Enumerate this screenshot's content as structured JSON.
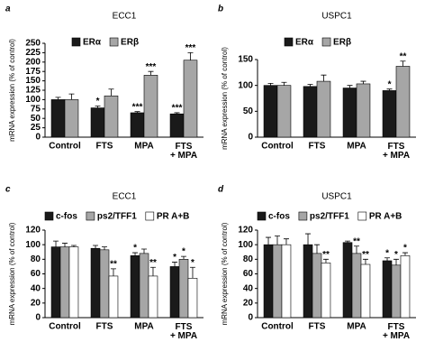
{
  "chart_data": [
    {
      "type": "bar",
      "panel": "a",
      "title": "ECC1",
      "y_label": "mRNA expression (% of control)",
      "categories": [
        "Control",
        "FTS",
        "MPA",
        "FTS + MPA"
      ],
      "series": [
        {
          "name": "ERα",
          "color": "#1a1a1a",
          "values": [
            100,
            78,
            65,
            62
          ],
          "errors": [
            6,
            5,
            3,
            3
          ],
          "significance": [
            null,
            "*",
            "***",
            "***"
          ]
        },
        {
          "name": "ERβ",
          "color": "#a6a6a6",
          "values": [
            100,
            110,
            165,
            205
          ],
          "errors": [
            15,
            18,
            10,
            20
          ],
          "significance": [
            null,
            null,
            "***",
            "***"
          ]
        }
      ],
      "ylim": [
        0,
        250
      ],
      "yticks": [
        0,
        25,
        50,
        75,
        100,
        125,
        150,
        175,
        200,
        225,
        250
      ]
    },
    {
      "type": "bar",
      "panel": "b",
      "title": "USPC1",
      "y_label": "mRNA expression (% of control)",
      "categories": [
        "Control",
        "FTS",
        "MPA",
        "FTS + MPA"
      ],
      "series": [
        {
          "name": "ERα",
          "color": "#1a1a1a",
          "values": [
            100,
            98,
            95,
            90
          ],
          "errors": [
            4,
            4,
            5,
            3
          ],
          "significance": [
            null,
            null,
            null,
            "*"
          ]
        },
        {
          "name": "ERβ",
          "color": "#a6a6a6",
          "values": [
            100,
            108,
            103,
            137
          ],
          "errors": [
            6,
            12,
            5,
            10
          ],
          "significance": [
            null,
            null,
            null,
            "**"
          ]
        }
      ],
      "ylim": [
        0,
        150
      ],
      "yticks": [
        0,
        50,
        100,
        150
      ]
    },
    {
      "type": "bar",
      "panel": "c",
      "title": "ECC1",
      "y_label": "mRNA expression (% of control)",
      "categories": [
        "Control",
        "FTS",
        "MPA",
        "FTS + MPA"
      ],
      "series": [
        {
          "name": "c-fos",
          "color": "#1a1a1a",
          "values": [
            97,
            95,
            85,
            70
          ],
          "errors": [
            8,
            4,
            4,
            6
          ],
          "significance": [
            null,
            null,
            "*",
            "*"
          ]
        },
        {
          "name": "ps2/TFF1",
          "color": "#a6a6a6",
          "values": [
            97,
            93,
            88,
            80
          ],
          "errors": [
            5,
            4,
            6,
            4
          ],
          "significance": [
            null,
            null,
            null,
            "*"
          ]
        },
        {
          "name": "PR A+B",
          "color": "#ffffff",
          "values": [
            97,
            57,
            57,
            54
          ],
          "errors": [
            2,
            10,
            12,
            15
          ],
          "significance": [
            null,
            "**",
            "**",
            "*"
          ]
        }
      ],
      "ylim": [
        0,
        120
      ],
      "yticks": [
        0,
        20,
        40,
        60,
        80,
        100,
        120
      ]
    },
    {
      "type": "bar",
      "panel": "d",
      "title": "USPC1",
      "y_label": "mRNA expression (% of control)",
      "categories": [
        "Control",
        "FTS",
        "MPA",
        "FTS + MPA"
      ],
      "series": [
        {
          "name": "c-fos",
          "color": "#1a1a1a",
          "values": [
            100,
            100,
            103,
            78
          ],
          "errors": [
            10,
            15,
            2,
            4
          ],
          "significance": [
            null,
            null,
            null,
            "*"
          ]
        },
        {
          "name": "ps2/TFF1",
          "color": "#a6a6a6",
          "values": [
            100,
            88,
            88,
            72
          ],
          "errors": [
            12,
            12,
            10,
            8
          ],
          "significance": [
            null,
            null,
            "**",
            "*"
          ]
        },
        {
          "name": "PR A+B",
          "color": "#ffffff",
          "values": [
            100,
            75,
            73,
            85
          ],
          "errors": [
            8,
            5,
            7,
            4
          ],
          "significance": [
            null,
            "**",
            "**",
            "*"
          ]
        }
      ],
      "ylim": [
        0,
        120
      ],
      "yticks": [
        0,
        20,
        40,
        60,
        80,
        100,
        120
      ]
    }
  ]
}
